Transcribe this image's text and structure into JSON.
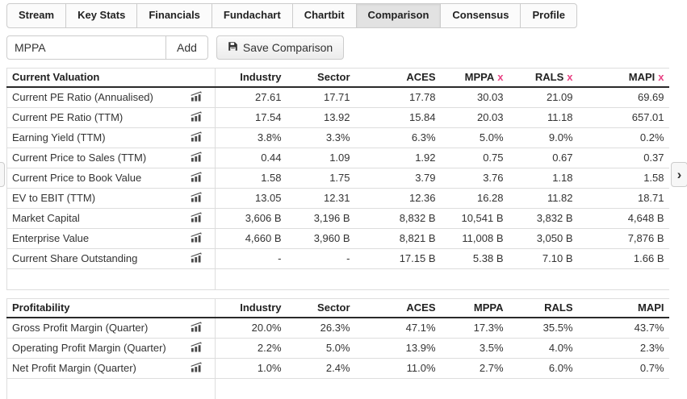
{
  "tabs": {
    "items": [
      {
        "label": "Stream",
        "active": false
      },
      {
        "label": "Key Stats",
        "active": false
      },
      {
        "label": "Financials",
        "active": false
      },
      {
        "label": "Fundachart",
        "active": false
      },
      {
        "label": "Chartbit",
        "active": false
      },
      {
        "label": "Comparison",
        "active": true
      },
      {
        "label": "Consensus",
        "active": false
      },
      {
        "label": "Profile",
        "active": false
      }
    ]
  },
  "toolbar": {
    "ticker_value": "MPPA",
    "add_label": "Add",
    "save_label": "Save Comparison"
  },
  "icons": {
    "remove_glyph": "x",
    "prev_glyph": "‹",
    "next_glyph": "›",
    "save_icon": "floppy-disk-icon",
    "metric_icon": "chart-icon"
  },
  "colors": {
    "accent_pink": "#e84283",
    "table_border": "#dddddd",
    "header_border": "#2a2a2a"
  },
  "comparison": {
    "tables": [
      {
        "section": "Current Valuation",
        "columns": [
          "Industry",
          "Sector",
          "ACES",
          "MPPA",
          "RALS",
          "MAPI"
        ],
        "removable": [
          false,
          false,
          false,
          true,
          true,
          true
        ],
        "rows": [
          {
            "label": "Current PE Ratio (Annualised)",
            "values": [
              "27.61",
              "17.71",
              "17.78",
              "30.03",
              "21.09",
              "69.69"
            ]
          },
          {
            "label": "Current PE Ratio (TTM)",
            "values": [
              "17.54",
              "13.92",
              "15.84",
              "20.03",
              "11.18",
              "657.01"
            ]
          },
          {
            "label": "Earning Yield (TTM)",
            "values": [
              "3.8%",
              "3.3%",
              "6.3%",
              "5.0%",
              "9.0%",
              "0.2%"
            ]
          },
          {
            "label": "Current Price to Sales (TTM)",
            "values": [
              "0.44",
              "1.09",
              "1.92",
              "0.75",
              "0.67",
              "0.37"
            ]
          },
          {
            "label": "Current Price to Book Value",
            "values": [
              "1.58",
              "1.75",
              "3.79",
              "3.76",
              "1.18",
              "1.58"
            ]
          },
          {
            "label": "EV to EBIT (TTM)",
            "values": [
              "13.05",
              "12.31",
              "12.36",
              "16.28",
              "11.82",
              "18.71"
            ]
          },
          {
            "label": "Market Capital",
            "values": [
              "3,606 B",
              "3,196 B",
              "8,832 B",
              "10,541 B",
              "3,832 B",
              "4,648 B"
            ]
          },
          {
            "label": "Enterprise Value",
            "values": [
              "4,660 B",
              "3,960 B",
              "8,821 B",
              "11,008 B",
              "3,050 B",
              "7,876 B"
            ]
          },
          {
            "label": "Current Share Outstanding",
            "values": [
              "-",
              "-",
              "17.15 B",
              "5.38 B",
              "7.10 B",
              "1.66 B"
            ]
          }
        ]
      },
      {
        "section": "Profitability",
        "columns": [
          "Industry",
          "Sector",
          "ACES",
          "MPPA",
          "RALS",
          "MAPI"
        ],
        "removable": [
          false,
          false,
          false,
          false,
          false,
          false
        ],
        "rows": [
          {
            "label": "Gross Profit Margin (Quarter)",
            "values": [
              "20.0%",
              "26.3%",
              "47.1%",
              "17.3%",
              "35.5%",
              "43.7%"
            ]
          },
          {
            "label": "Operating Profit Margin (Quarter)",
            "values": [
              "2.2%",
              "5.0%",
              "13.9%",
              "3.5%",
              "4.0%",
              "2.3%"
            ]
          },
          {
            "label": "Net Profit Margin (Quarter)",
            "values": [
              "1.0%",
              "2.4%",
              "11.0%",
              "2.7%",
              "6.0%",
              "0.7%"
            ]
          }
        ]
      }
    ]
  }
}
